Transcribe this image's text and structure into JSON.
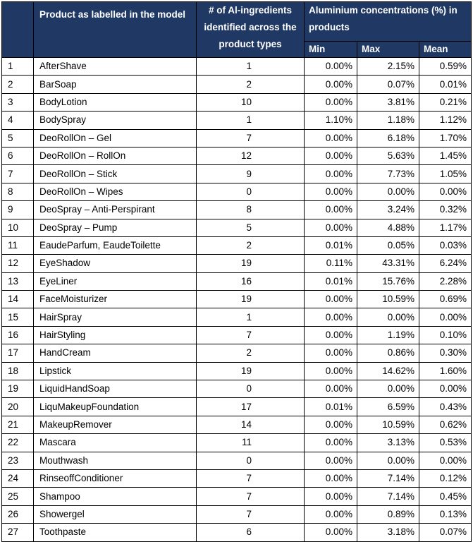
{
  "headers": {
    "index": "",
    "product": "Product as labelled in the model",
    "count": "# of Al-ingredients identified across the product types",
    "concentration": "Aluminium concentrations (%) in products",
    "min": "Min",
    "max": "Max",
    "mean": "Mean"
  },
  "colors": {
    "header_bg": "#1f3864",
    "header_text": "#ffffff",
    "border": "#000000"
  },
  "rows": [
    {
      "index": "1",
      "product": "AfterShave",
      "count": "1",
      "min": "0.00%",
      "max": "2.15%",
      "mean": "0.59%"
    },
    {
      "index": "2",
      "product": "BarSoap",
      "count": "2",
      "min": "0.00%",
      "max": "0.07%",
      "mean": "0.01%"
    },
    {
      "index": "3",
      "product": "BodyLotion",
      "count": "10",
      "min": "0.00%",
      "max": "3.81%",
      "mean": "0.21%"
    },
    {
      "index": "4",
      "product": "BodySpray",
      "count": "1",
      "min": "1.10%",
      "max": "1.18%",
      "mean": "1.12%"
    },
    {
      "index": "5",
      "product": "DeoRollOn – Gel",
      "count": "7",
      "min": "0.00%",
      "max": "6.18%",
      "mean": "1.70%"
    },
    {
      "index": "6",
      "product": "DeoRollOn – RollOn",
      "count": "12",
      "min": "0.00%",
      "max": "5.63%",
      "mean": "1.45%"
    },
    {
      "index": "7",
      "product": "DeoRollOn – Stick",
      "count": "9",
      "min": "0.00%",
      "max": "7.73%",
      "mean": "1.05%"
    },
    {
      "index": "8",
      "product": "DeoRollOn – Wipes",
      "count": "0",
      "min": "0.00%",
      "max": "0.00%",
      "mean": "0.00%"
    },
    {
      "index": "9",
      "product": "DeoSpray – Anti-Perspirant",
      "count": "8",
      "min": "0.00%",
      "max": "3.24%",
      "mean": "0.32%"
    },
    {
      "index": "10",
      "product": "DeoSpray – Pump",
      "count": "5",
      "min": "0.00%",
      "max": "4.88%",
      "mean": "1.17%"
    },
    {
      "index": "11",
      "product": "EaudeParfum, EaudeToilette",
      "count": "2",
      "min": "0.01%",
      "max": "0.05%",
      "mean": "0.03%"
    },
    {
      "index": "12",
      "product": "EyeShadow",
      "count": "19",
      "min": "0.11%",
      "max": "43.31%",
      "mean": "6.24%"
    },
    {
      "index": "13",
      "product": "EyeLiner",
      "count": "16",
      "min": "0.01%",
      "max": "15.76%",
      "mean": "2.28%"
    },
    {
      "index": "14",
      "product": "FaceMoisturizer",
      "count": "19",
      "min": "0.00%",
      "max": "10.59%",
      "mean": "0.69%"
    },
    {
      "index": "15",
      "product": "HairSpray",
      "count": "1",
      "min": "0.00%",
      "max": "0.00%",
      "mean": "0.00%"
    },
    {
      "index": "16",
      "product": "HairStyling",
      "count": "7",
      "min": "0.00%",
      "max": "1.19%",
      "mean": "0.10%"
    },
    {
      "index": "17",
      "product": "HandCream",
      "count": "2",
      "min": "0.00%",
      "max": "0.86%",
      "mean": "0.30%"
    },
    {
      "index": "18",
      "product": "Lipstick",
      "count": "19",
      "min": "0.00%",
      "max": "14.62%",
      "mean": "1.60%"
    },
    {
      "index": "19",
      "product": "LiquidHandSoap",
      "count": "0",
      "min": "0.00%",
      "max": "0.00%",
      "mean": "0.00%"
    },
    {
      "index": "20",
      "product": "LiquMakeupFoundation",
      "count": "17",
      "min": "0.01%",
      "max": "6.59%",
      "mean": "0.43%"
    },
    {
      "index": "21",
      "product": "MakeupRemover",
      "count": "14",
      "min": "0.00%",
      "max": "10.59%",
      "mean": "0.62%"
    },
    {
      "index": "22",
      "product": "Mascara",
      "count": "11",
      "min": "0.00%",
      "max": "3.13%",
      "mean": "0.53%"
    },
    {
      "index": "23",
      "product": "Mouthwash",
      "count": "0",
      "min": "0.00%",
      "max": "0.00%",
      "mean": "0.00%"
    },
    {
      "index": "24",
      "product": "RinseoffConditioner",
      "count": "7",
      "min": "0.00%",
      "max": "7.14%",
      "mean": "0.12%"
    },
    {
      "index": "25",
      "product": "Shampoo",
      "count": "7",
      "min": "0.00%",
      "max": "7.14%",
      "mean": "0.45%"
    },
    {
      "index": "26",
      "product": "Showergel",
      "count": "7",
      "min": "0.00%",
      "max": "0.89%",
      "mean": "0.13%"
    },
    {
      "index": "27",
      "product": "Toothpaste",
      "count": "6",
      "min": "0.00%",
      "max": "3.18%",
      "mean": "0.07%"
    }
  ]
}
